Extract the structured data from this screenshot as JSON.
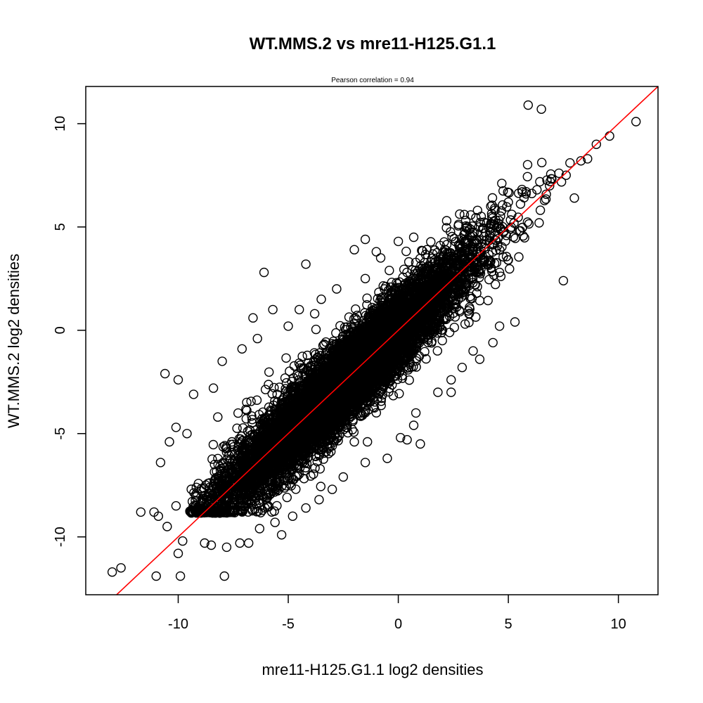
{
  "chart_data": {
    "type": "scatter",
    "title": "WT.MMS.2 vs mre11-H125.G1.1",
    "subtitle": "Pearson correlation =  0.94",
    "xlabel": "mre11-H125.G1.1 log2 densities",
    "ylabel": "WT.MMS.2 log2 densities",
    "xlim": [
      -14.2,
      11.8
    ],
    "ylim": [
      -12.8,
      11.8
    ],
    "xticks": [
      -10,
      -5,
      0,
      5,
      10
    ],
    "xtick_labels": [
      "-10",
      "-5",
      "0",
      "5",
      "10"
    ],
    "yticks": [
      -10,
      -5,
      0,
      5,
      10
    ],
    "ytick_labels": [
      "-10",
      "-5",
      "0",
      "5",
      "10"
    ],
    "grid": false,
    "point_color": "#000000",
    "fit_line": {
      "slope": 1.0,
      "intercept": 0.0,
      "color": "#ff0000"
    },
    "pearson_correlation": 0.94,
    "point_cloud": {
      "count": 9000,
      "x_center": -2.5,
      "x_sd": 2.9,
      "x_range": [
        -9.5,
        8.2
      ],
      "y_equals_x_residual_sd": 1.0,
      "y_floor": -8.85
    },
    "outliers": [
      [
        -13.0,
        -11.7
      ],
      [
        -12.6,
        -11.5
      ],
      [
        -11.0,
        -11.9
      ],
      [
        -9.9,
        -11.9
      ],
      [
        -7.9,
        -11.9
      ],
      [
        -10.0,
        -10.8
      ],
      [
        -9.8,
        -10.2
      ],
      [
        -8.8,
        -10.3
      ],
      [
        -8.5,
        -10.4
      ],
      [
        -7.8,
        -10.5
      ],
      [
        -7.2,
        -10.3
      ],
      [
        -6.8,
        -10.3
      ],
      [
        -5.3,
        -9.9
      ],
      [
        -11.7,
        -8.8
      ],
      [
        -11.1,
        -8.8
      ],
      [
        -10.9,
        -9.0
      ],
      [
        -10.5,
        -9.5
      ],
      [
        -10.1,
        -8.5
      ],
      [
        -10.8,
        -6.4
      ],
      [
        -9.6,
        -5.0
      ],
      [
        -10.1,
        -4.7
      ],
      [
        -10.4,
        -5.4
      ],
      [
        -9.3,
        -3.1
      ],
      [
        -10.6,
        -2.1
      ],
      [
        -10.0,
        -2.4
      ],
      [
        -8.4,
        -2.8
      ],
      [
        -8.0,
        -1.5
      ],
      [
        -7.1,
        -0.9
      ],
      [
        -6.6,
        0.6
      ],
      [
        -6.4,
        -0.4
      ],
      [
        -5.7,
        1.0
      ],
      [
        -6.1,
        2.8
      ],
      [
        -4.2,
        3.2
      ],
      [
        -2.0,
        3.9
      ],
      [
        -1.0,
        3.8
      ],
      [
        -0.8,
        3.5
      ],
      [
        0.0,
        4.3
      ],
      [
        0.7,
        4.5
      ],
      [
        -1.5,
        4.4
      ],
      [
        1.3,
        3.9
      ],
      [
        2.2,
        5.3
      ],
      [
        3.0,
        5.6
      ],
      [
        3.6,
        5.8
      ],
      [
        4.2,
        6.0
      ],
      [
        5.0,
        6.2
      ],
      [
        5.8,
        6.6
      ],
      [
        6.3,
        6.8
      ],
      [
        6.9,
        7.2
      ],
      [
        7.3,
        7.6
      ],
      [
        7.8,
        8.1
      ],
      [
        8.3,
        8.2
      ],
      [
        8.6,
        8.3
      ],
      [
        9.0,
        9.0
      ],
      [
        9.6,
        9.4
      ],
      [
        10.8,
        10.1
      ],
      [
        5.9,
        10.9
      ],
      [
        6.5,
        10.7
      ],
      [
        7.5,
        2.4
      ],
      [
        8.0,
        6.4
      ],
      [
        6.4,
        5.2
      ],
      [
        5.0,
        3.4
      ],
      [
        4.6,
        2.8
      ],
      [
        5.3,
        0.4
      ],
      [
        4.6,
        0.2
      ],
      [
        4.3,
        -0.6
      ],
      [
        3.4,
        -1.0
      ],
      [
        3.7,
        -1.4
      ],
      [
        2.9,
        -1.8
      ],
      [
        2.4,
        -2.4
      ],
      [
        2.4,
        -3.0
      ],
      [
        1.8,
        -3.0
      ],
      [
        0.8,
        -4.0
      ],
      [
        0.7,
        -4.6
      ],
      [
        0.1,
        -5.2
      ],
      [
        0.4,
        -5.3
      ],
      [
        1.0,
        -5.5
      ],
      [
        -0.5,
        -6.2
      ],
      [
        -1.5,
        -6.4
      ],
      [
        -1.4,
        -5.4
      ],
      [
        -2.0,
        -5.4
      ],
      [
        -2.5,
        -7.1
      ],
      [
        -3.0,
        -7.7
      ],
      [
        -3.6,
        -8.2
      ],
      [
        -4.2,
        -8.6
      ],
      [
        -4.8,
        -9.0
      ],
      [
        -5.6,
        -9.3
      ],
      [
        -6.3,
        -9.6
      ],
      [
        0.5,
        1.3
      ],
      [
        -1.5,
        2.5
      ],
      [
        -2.8,
        2.0
      ],
      [
        -3.5,
        1.5
      ],
      [
        -4.5,
        1.0
      ],
      [
        -5.0,
        0.2
      ],
      [
        -3.8,
        0.8
      ],
      [
        2.0,
        -0.5
      ],
      [
        2.8,
        0.9
      ],
      [
        3.5,
        2.2
      ],
      [
        1.2,
        2.8
      ],
      [
        -7.3,
        -6.8
      ],
      [
        -8.2,
        -4.2
      ]
    ]
  }
}
